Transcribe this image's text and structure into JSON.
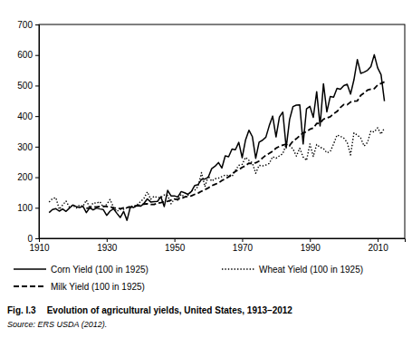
{
  "chart_data": {
    "type": "line",
    "figure_label": "Fig. I.3",
    "title": "Evolution of agricultural yields, United States, 1913–2012",
    "source": "Source: ERS USDA (2012).",
    "x": [
      1913,
      1914,
      1915,
      1916,
      1917,
      1918,
      1919,
      1920,
      1921,
      1922,
      1923,
      1924,
      1925,
      1926,
      1927,
      1928,
      1929,
      1930,
      1931,
      1932,
      1933,
      1934,
      1935,
      1936,
      1937,
      1938,
      1939,
      1940,
      1941,
      1942,
      1943,
      1944,
      1945,
      1946,
      1947,
      1948,
      1949,
      1950,
      1951,
      1952,
      1953,
      1954,
      1955,
      1956,
      1957,
      1958,
      1959,
      1960,
      1961,
      1962,
      1963,
      1964,
      1965,
      1966,
      1967,
      1968,
      1969,
      1970,
      1971,
      1972,
      1973,
      1974,
      1975,
      1976,
      1977,
      1978,
      1979,
      1980,
      1981,
      1982,
      1983,
      1984,
      1985,
      1986,
      1987,
      1988,
      1989,
      1990,
      1991,
      1992,
      1993,
      1994,
      1995,
      1996,
      1997,
      1998,
      1999,
      2000,
      2001,
      2002,
      2003,
      2004,
      2005,
      2006,
      2007,
      2008,
      2009,
      2010,
      2011,
      2012
    ],
    "series": [
      {
        "name": "Corn Yield (100 in 1925)",
        "color": "#000000",
        "line_style": "solid",
        "values": [
          84,
          94,
          97,
          89,
          96,
          88,
          99,
          109,
          104,
          101,
          105,
          84,
          100,
          93,
          99,
          96,
          94,
          75,
          89,
          97,
          82,
          68,
          88,
          59,
          103,
          101,
          107,
          105,
          114,
          129,
          119,
          120,
          121,
          136,
          104,
          157,
          139,
          139,
          135,
          153,
          149,
          144,
          153,
          173,
          176,
          193,
          194,
          200,
          228,
          236,
          248,
          230,
          270,
          267,
          292,
          290,
          314,
          264,
          322,
          354,
          333,
          262,
          315,
          321,
          331,
          369,
          400,
          332,
          397,
          413,
          296,
          389,
          431,
          436,
          437,
          309,
          424,
          432,
          396,
          480,
          368,
          506,
          414,
          464,
          462,
          491,
          488,
          500,
          504,
          472,
          519,
          585,
          540,
          544,
          550,
          562,
          601,
          558,
          536,
          449
        ]
      },
      {
        "name": "Wheat Yield (100 in 1925)",
        "color": "#000000",
        "line_style": "dotted",
        "values": [
          119,
          130,
          133,
          95,
          109,
          122,
          102,
          108,
          99,
          109,
          105,
          125,
          100,
          116,
          115,
          120,
          102,
          111,
          127,
          102,
          88,
          95,
          95,
          100,
          106,
          104,
          110,
          120,
          131,
          152,
          128,
          138,
          133,
          134,
          142,
          140,
          113,
          129,
          125,
          144,
          135,
          141,
          155,
          158,
          170,
          215,
          169,
          204,
          187,
          195,
          197,
          202,
          207,
          205,
          202,
          222,
          239,
          242,
          265,
          255,
          247,
          213,
          239,
          237,
          240,
          245,
          267,
          262,
          270,
          277,
          308,
          303,
          293,
          269,
          295,
          266,
          255,
          309,
          268,
          307,
          298,
          294,
          280,
          284,
          309,
          338,
          334,
          328,
          314,
          273,
          345,
          338,
          328,
          302,
          314,
          351,
          348,
          362,
          341,
          361
        ]
      },
      {
        "name": "Milk Yield (100 in 1925)",
        "color": "#000000",
        "line_style": "dashed",
        "values": [
          null,
          null,
          null,
          null,
          null,
          null,
          null,
          null,
          null,
          null,
          null,
          98,
          100,
          102,
          103,
          104,
          105,
          104,
          103,
          100,
          99,
          97,
          100,
          101,
          102,
          105,
          107,
          109,
          112,
          113,
          111,
          111,
          115,
          117,
          120,
          121,
          125,
          128,
          128,
          130,
          135,
          137,
          139,
          144,
          148,
          154,
          159,
          165,
          172,
          177,
          181,
          189,
          195,
          201,
          211,
          219,
          225,
          232,
          238,
          246,
          245,
          247,
          253,
          263,
          272,
          278,
          285,
          295,
          301,
          305,
          308,
          304,
          318,
          326,
          336,
          345,
          349,
          357,
          361,
          376,
          377,
          390,
          394,
          398,
          408,
          415,
          428,
          438,
          437,
          446,
          449,
          450,
          468,
          476,
          485,
          488,
          490,
          502,
          507,
          512
        ]
      }
    ],
    "xlim": [
      1910,
      2018
    ],
    "xticks": [
      1910,
      1930,
      1950,
      1970,
      1990,
      2010
    ],
    "ylim": [
      0,
      700
    ],
    "yticks": [
      0,
      100,
      200,
      300,
      400,
      500,
      600,
      700
    ],
    "grid": false,
    "legend": "bottom"
  }
}
